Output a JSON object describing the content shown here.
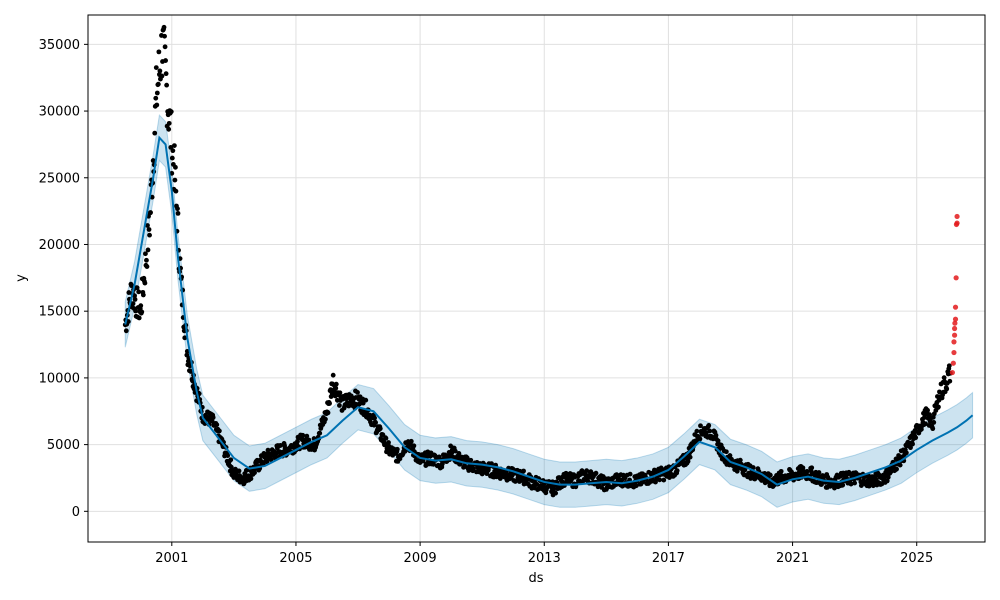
{
  "chart_data": {
    "type": "scatter",
    "xlabel": "ds",
    "ylabel": "y",
    "xlim": [
      1998.3,
      2027.2
    ],
    "ylim": [
      -2300,
      37200
    ],
    "grid": true,
    "x_ticks": [
      2001,
      2005,
      2009,
      2013,
      2017,
      2021,
      2025
    ],
    "x_tick_labels": [
      "2001",
      "2005",
      "2009",
      "2013",
      "2017",
      "2021",
      "2025"
    ],
    "y_ticks": [
      0,
      5000,
      10000,
      15000,
      20000,
      25000,
      30000,
      35000
    ],
    "y_tick_labels": [
      "0",
      "5000",
      "10000",
      "15000",
      "20000",
      "25000",
      "30000",
      "35000"
    ],
    "colors": {
      "observed": "#000000",
      "forecast_line": "#0072B2",
      "uncertainty": "#0072B2",
      "outlier": "#e31a1c",
      "grid": "#e0e0e0"
    },
    "forecast": {
      "x": [
        1999.5,
        1999.8,
        2000.1,
        2000.4,
        2000.6,
        2000.8,
        2001.0,
        2001.2,
        2001.5,
        2001.8,
        2002.0,
        2002.5,
        2003.0,
        2003.5,
        2004.0,
        2004.5,
        2005.0,
        2005.5,
        2006.0,
        2006.5,
        2007.0,
        2007.5,
        2008.0,
        2008.5,
        2009.0,
        2009.5,
        2010.0,
        2010.5,
        2011.0,
        2011.5,
        2012.0,
        2012.5,
        2013.0,
        2013.5,
        2014.0,
        2014.5,
        2015.0,
        2015.5,
        2016.0,
        2016.5,
        2017.0,
        2017.5,
        2018.0,
        2018.5,
        2019.0,
        2019.5,
        2020.0,
        2020.5,
        2021.0,
        2021.5,
        2022.0,
        2022.5,
        2023.0,
        2023.5,
        2024.0,
        2024.5,
        2025.0,
        2025.5,
        2026.0,
        2026.3,
        2026.6,
        2026.8
      ],
      "yhat": [
        14000,
        17000,
        21000,
        25000,
        28000,
        27500,
        24000,
        19000,
        13000,
        9000,
        7000,
        5500,
        4000,
        3200,
        3400,
        4000,
        4600,
        5200,
        5700,
        6800,
        7800,
        7500,
        6200,
        4800,
        4000,
        3800,
        3900,
        3600,
        3500,
        3300,
        3000,
        2600,
        2200,
        2000,
        2000,
        2100,
        2200,
        2100,
        2300,
        2600,
        3100,
        4100,
        5200,
        4800,
        3700,
        3300,
        2800,
        2000,
        2400,
        2600,
        2300,
        2200,
        2500,
        2900,
        3300,
        3800,
        4600,
        5300,
        5900,
        6300,
        6800,
        7200
      ],
      "lower_offset": 1700,
      "upper_offset": 1700
    },
    "observed": {
      "segments": [
        {
          "x": [
            1999.5,
            1999.7,
            2000.0,
            2000.3,
            2000.5,
            2000.7,
            2000.9,
            2001.1,
            2001.3,
            2001.5,
            2001.8,
            2002.0,
            2002.3,
            2002.6,
            2003.0,
            2003.3,
            2003.6,
            2004.0,
            2004.4,
            2004.8,
            2005.2,
            2005.6,
            2006.0,
            2006.2,
            2006.5,
            2006.8,
            2007.0,
            2007.3,
            2007.6,
            2008.0,
            2008.3,
            2008.6,
            2009.0,
            2009.3,
            2009.7,
            2010.0,
            2010.3,
            2010.7,
            2011.0,
            2011.3,
            2011.6,
            2012.0,
            2012.3,
            2012.6,
            2013.0,
            2013.3,
            2013.6,
            2014.0,
            2014.3,
            2014.6,
            2015.0,
            2015.3,
            2015.6,
            2016.0,
            2016.3,
            2016.6,
            2017.0,
            2017.3,
            2017.6,
            2017.9,
            2018.1,
            2018.4,
            2018.7,
            2019.0,
            2019.3,
            2019.6,
            2020.0,
            2020.3,
            2020.6,
            2021.0,
            2021.3,
            2021.6,
            2022.0,
            2022.3,
            2022.6,
            2023.0,
            2023.3,
            2023.6,
            2024.0,
            2024.3,
            2024.6,
            2025.0,
            2025.3,
            2025.5,
            2025.7,
            2025.9,
            2026.1
          ],
          "y": [
            14000,
            16500,
            15000,
            22000,
            31000,
            35000,
            30000,
            25000,
            17000,
            12000,
            9000,
            7200,
            6800,
            5200,
            2800,
            2500,
            3000,
            4000,
            4500,
            4700,
            5300,
            5000,
            7500,
            9800,
            8000,
            8500,
            8300,
            7600,
            6300,
            4600,
            4100,
            5200,
            3800,
            4000,
            3700,
            4500,
            3800,
            3400,
            3200,
            3100,
            2900,
            2700,
            2600,
            2200,
            1900,
            1700,
            2400,
            2300,
            2700,
            2500,
            2000,
            2300,
            2400,
            2200,
            2500,
            2700,
            2900,
            3300,
            4000,
            5600,
            6100,
            5900,
            4500,
            3700,
            3400,
            3000,
            2700,
            2200,
            2500,
            2700,
            2900,
            2800,
            2300,
            2200,
            2400,
            2500,
            2400,
            2300,
            2600,
            3500,
            4300,
            6000,
            7200,
            6500,
            8500,
            9500,
            10500
          ]
        }
      ],
      "spread": 1200
    },
    "outliers": {
      "x": [
        2026.15,
        2026.18,
        2026.2,
        2026.2,
        2026.22,
        2026.22,
        2026.23,
        2026.25,
        2026.25,
        2026.27,
        2026.28,
        2026.3,
        2026.3
      ],
      "y": [
        10400,
        11100,
        11900,
        12700,
        13200,
        13700,
        14100,
        14400,
        15300,
        17500,
        21500,
        21600,
        22100
      ]
    }
  }
}
